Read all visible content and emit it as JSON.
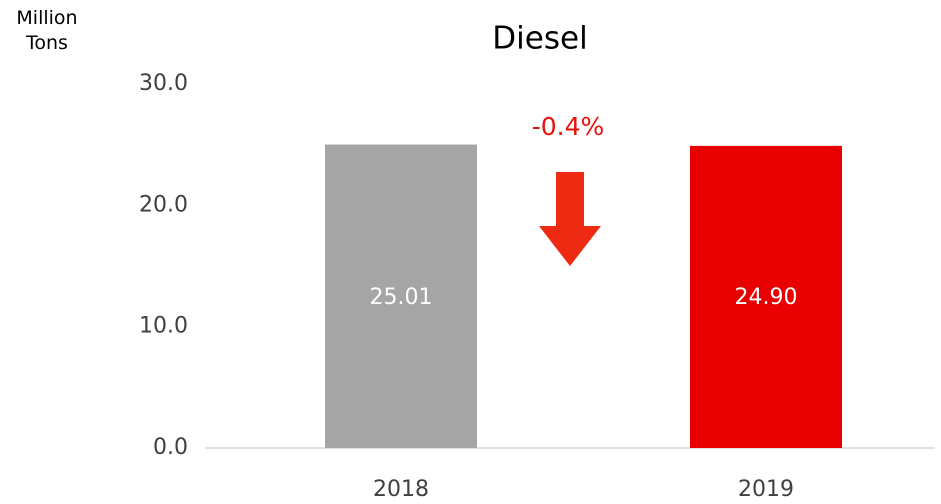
{
  "chart_data": {
    "type": "bar",
    "title": "Diesel",
    "y_label": "Million Tons",
    "categories": [
      "2018",
      "2019"
    ],
    "values": [
      25.01,
      24.9
    ],
    "value_labels": [
      "25.01",
      "24.90"
    ],
    "colors": [
      "#a5a5a5",
      "#e80000"
    ],
    "ylim": [
      0,
      30
    ],
    "yticks": [
      {
        "value": 0,
        "label": "0.0"
      },
      {
        "value": 10,
        "label": "10.0"
      },
      {
        "value": 20,
        "label": "20.0"
      },
      {
        "value": 30,
        "label": "30.0"
      }
    ],
    "grid": false,
    "annotation": "-0.4%"
  }
}
